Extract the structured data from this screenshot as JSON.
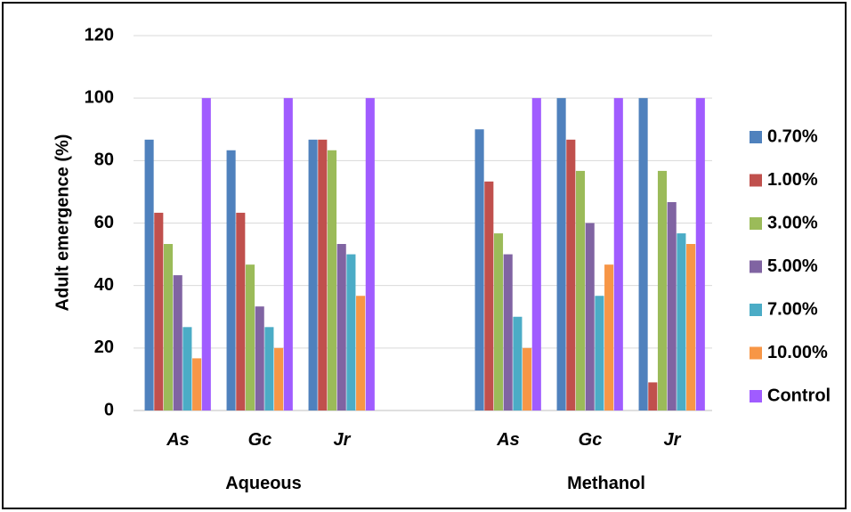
{
  "chart_data": {
    "type": "bar",
    "ylabel": "Adult emergence (%)",
    "ylim": [
      0,
      120
    ],
    "yticks": [
      0,
      20,
      40,
      60,
      80,
      100,
      120
    ],
    "grid": true,
    "legend_position": "right",
    "groups": [
      {
        "label": "Aqueous",
        "categories": [
          "As",
          "Gc",
          "Jr"
        ]
      },
      {
        "label": "Methanol",
        "categories": [
          "As",
          "Gc",
          "Jr"
        ]
      }
    ],
    "series": [
      {
        "name": "0.70%",
        "color": "#4F81BD",
        "values": [
          86.7,
          83.3,
          86.7,
          90.0,
          100.0,
          100.0
        ]
      },
      {
        "name": "1.00%",
        "color": "#C0504D",
        "values": [
          63.3,
          63.3,
          86.7,
          73.3,
          86.7,
          9.0
        ]
      },
      {
        "name": "3.00%",
        "color": "#9BBB59",
        "values": [
          53.3,
          46.7,
          83.3,
          56.7,
          76.7,
          76.7
        ]
      },
      {
        "name": "5.00%",
        "color": "#8064A2",
        "values": [
          43.3,
          33.3,
          53.3,
          50.0,
          60.0,
          66.7
        ]
      },
      {
        "name": "7.00%",
        "color": "#4BACC6",
        "values": [
          26.7,
          26.7,
          50.0,
          30.0,
          36.7,
          56.7
        ]
      },
      {
        "name": "10.00%",
        "color": "#F79646",
        "values": [
          16.7,
          20.0,
          36.7,
          20.0,
          46.7,
          53.3
        ]
      },
      {
        "name": "Control",
        "color": "#A05CFF",
        "values": [
          100,
          100,
          100,
          100,
          100,
          100
        ]
      }
    ]
  }
}
